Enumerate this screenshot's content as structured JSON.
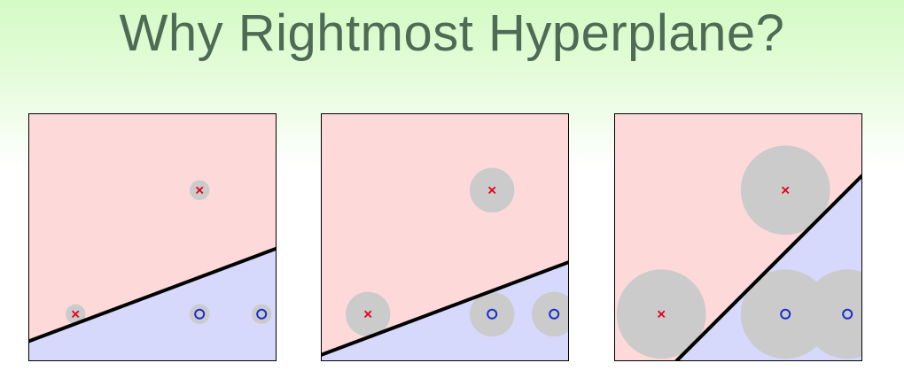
{
  "title": "Why Rightmost Hyperplane?",
  "colors": {
    "x_region": "#fdd9d9",
    "o_region": "#d6d8fc",
    "margin_disk": "#cbcbcb",
    "x_marker": "#e3001b",
    "o_marker": "#1a2ed0",
    "boundary": "#000000",
    "frame": "#000000"
  },
  "points": [
    {
      "class": "x",
      "x": 0.19,
      "y": 0.19
    },
    {
      "class": "x",
      "x": 0.69,
      "y": 0.69
    },
    {
      "class": "o",
      "x": 0.69,
      "y": 0.19
    },
    {
      "class": "o",
      "x": 0.94,
      "y": 0.19
    }
  ],
  "panels": [
    {
      "id": "panel-1",
      "line": [
        [
          0,
          0.08
        ],
        [
          1,
          0.455
        ]
      ],
      "margin_radius": 0.04
    },
    {
      "id": "panel-2",
      "line": [
        [
          0,
          0.025
        ],
        [
          1,
          0.4
        ]
      ],
      "margin_radius": 0.09
    },
    {
      "id": "panel-3",
      "line": [
        [
          0.25,
          0
        ],
        [
          1,
          0.75
        ]
      ],
      "margin_radius": 0.18
    }
  ]
}
